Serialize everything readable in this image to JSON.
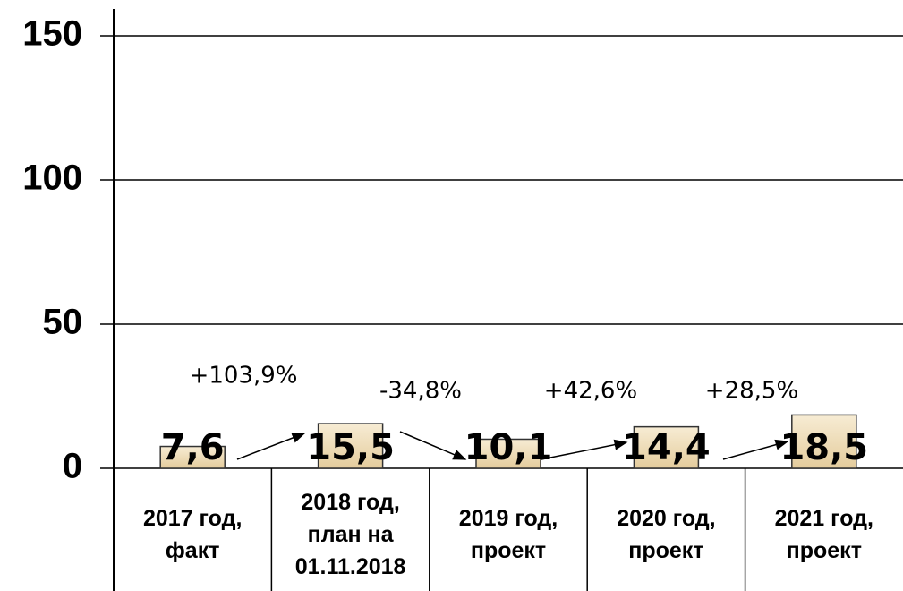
{
  "chart_data": {
    "type": "bar",
    "categories": [
      "2017 год,\nфакт",
      "2018 год,\nплан на\n01.11.2018",
      "2019 год,\nпроект",
      "2020 год,\nпроект",
      "2021 год,\nпроект"
    ],
    "values": [
      7.6,
      15.5,
      10.1,
      14.4,
      18.5
    ],
    "value_labels": [
      "7,6",
      "15,5",
      "10,1",
      "14,4",
      "18,5"
    ],
    "color": "#eedcb4",
    "ylim": [
      0,
      150
    ],
    "yticks": [
      0,
      50,
      100,
      150
    ],
    "grid": true,
    "annotations": [
      "+103,9%",
      "-34,8%",
      "+42,6%",
      "+28,5%"
    ]
  }
}
